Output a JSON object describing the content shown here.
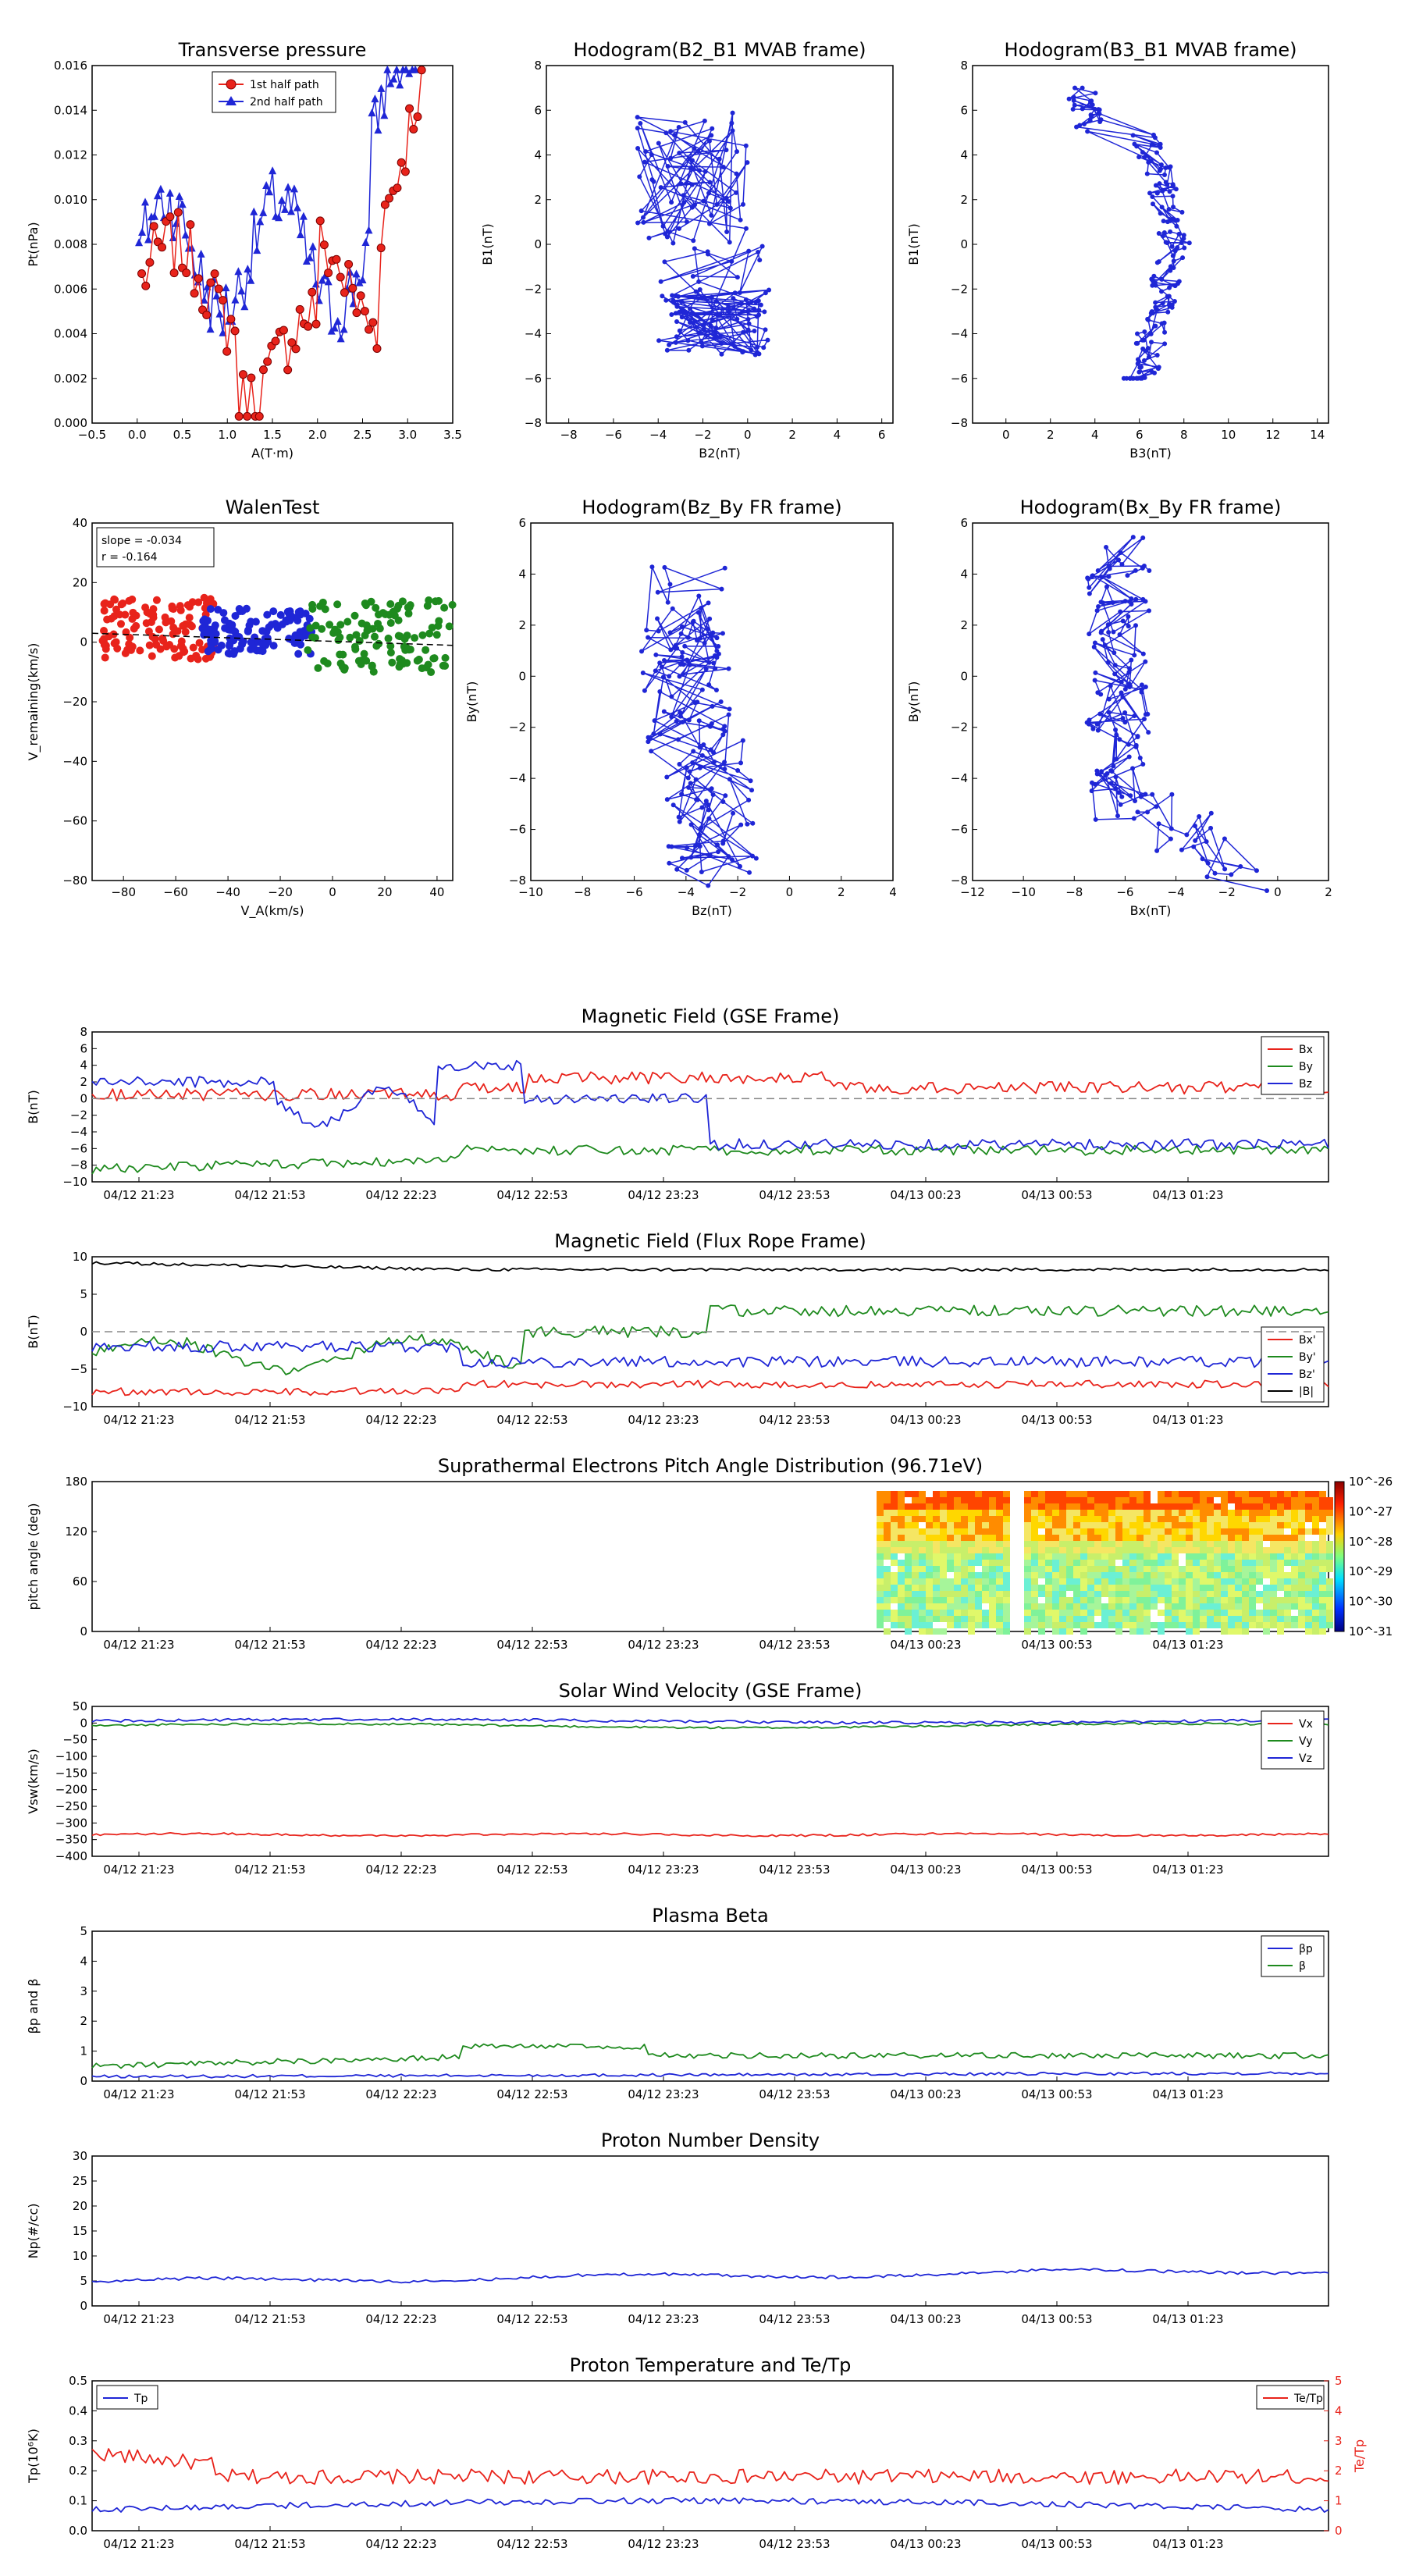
{
  "colors": {
    "red": "#e8231b",
    "green": "#1e8a1e",
    "blue": "#1f26d6",
    "black": "#000000",
    "dash": "#888888"
  },
  "time_ticks": [
    "04/12 21:23",
    "04/12 21:53",
    "04/12 22:23",
    "04/12 22:53",
    "04/12 23:23",
    "04/12 23:53",
    "04/13 00:23",
    "04/13 00:53",
    "04/13 01:23"
  ],
  "chart_data": [
    {
      "id": "pt",
      "type": "scatter",
      "title": "Transverse pressure",
      "xlabel": "A(T·m)",
      "ylabel": "Pt(nPa)",
      "xlim": [
        -0.5,
        3.5
      ],
      "ylim": [
        0,
        0.016
      ],
      "xticks": [
        "−0.5",
        "0.0",
        "0.5",
        "1.0",
        "1.5",
        "2.0",
        "2.5",
        "3.0",
        "3.5"
      ],
      "yticks": [
        "0.000",
        "0.002",
        "0.004",
        "0.006",
        "0.008",
        "0.010",
        "0.012",
        "0.014",
        "0.016"
      ],
      "legend": "upper-center",
      "series": [
        {
          "name": "1st half path",
          "marker": "circle"
        },
        {
          "name": "2nd half path",
          "marker": "triangle"
        }
      ]
    },
    {
      "id": "h1",
      "type": "line",
      "title": "Hodogram(B2_B1 MVAB frame)",
      "xlabel": "B2(nT)",
      "ylabel": "B1(nT)",
      "xlim": [
        -9,
        6.5
      ],
      "ylim": [
        -8,
        8
      ],
      "xticks": [
        "−8",
        "−6",
        "−4",
        "−2",
        "0",
        "2",
        "4",
        "6"
      ],
      "yticks": [
        "−8",
        "−6",
        "−4",
        "−2",
        "0",
        "2",
        "4",
        "6",
        "8"
      ]
    },
    {
      "id": "h2",
      "type": "line",
      "title": "Hodogram(B3_B1 MVAB frame)",
      "xlabel": "B3(nT)",
      "ylabel": "B1(nT)",
      "xlim": [
        -1.5,
        14.5
      ],
      "ylim": [
        -8,
        8
      ],
      "xticks": [
        "0",
        "2",
        "4",
        "6",
        "8",
        "10",
        "12",
        "14"
      ],
      "yticks": [
        "−8",
        "−6",
        "−4",
        "−2",
        "0",
        "2",
        "4",
        "6",
        "8"
      ]
    },
    {
      "id": "walen",
      "type": "scatter",
      "title": "WalenTest",
      "xlabel": "V_A(km/s)",
      "ylabel": "V_remaining(km/s)",
      "xlim": [
        -92,
        46
      ],
      "ylim": [
        -93,
        46
      ],
      "xticks": [
        "−80",
        "−60",
        "−40",
        "−20",
        "0",
        "20",
        "40"
      ],
      "yticks": [
        "−80",
        "−60",
        "−40",
        "−20",
        "0",
        "20",
        "40"
      ],
      "annotations": [
        "slope = -0.034",
        "r = -0.164"
      ]
    },
    {
      "id": "h3",
      "type": "line",
      "title": "Hodogram(Bz_By FR frame)",
      "xlabel": "Bz(nT)",
      "ylabel": "By(nT)",
      "xlim": [
        -10,
        4
      ],
      "ylim": [
        -8,
        6
      ],
      "xticks": [
        "−10",
        "−8",
        "−6",
        "−4",
        "−2",
        "0",
        "2",
        "4"
      ],
      "yticks": [
        "−8",
        "−6",
        "−4",
        "−2",
        "0",
        "2",
        "4",
        "6"
      ]
    },
    {
      "id": "h4",
      "type": "line",
      "title": "Hodogram(Bx_By FR frame)",
      "xlabel": "Bx(nT)",
      "ylabel": "By(nT)",
      "xlim": [
        -12,
        2
      ],
      "ylim": [
        -8,
        6
      ],
      "xticks": [
        "−12",
        "−10",
        "−8",
        "−6",
        "−4",
        "−2",
        "0",
        "2"
      ],
      "yticks": [
        "−8",
        "−6",
        "−4",
        "−2",
        "0",
        "2",
        "4",
        "6"
      ]
    },
    {
      "id": "ts1",
      "type": "line",
      "title": "Magnetic Field (GSE Frame)",
      "ylabel": "B(nT)",
      "ylim": [
        -10,
        8
      ],
      "yticks": [
        "−10",
        "−8",
        "−6",
        "−4",
        "−2",
        "0",
        "2",
        "4",
        "6",
        "8"
      ],
      "legend": "upper-right",
      "series": [
        {
          "name": "Bx",
          "base": 1.3
        },
        {
          "name": "By",
          "base": -6.5
        },
        {
          "name": "Bz",
          "base": -4.5
        }
      ]
    },
    {
      "id": "ts2",
      "type": "line",
      "title": "Magnetic Field (Flux Rope Frame)",
      "ylabel": "B(nT)",
      "ylim": [
        -10,
        10
      ],
      "yticks": [
        "−10",
        "−5",
        "0",
        "5",
        "10"
      ],
      "legend": "lower-right",
      "series": [
        {
          "name": "Bx'",
          "base": -7
        },
        {
          "name": "By'",
          "base": 2.5
        },
        {
          "name": "Bz'",
          "base": -3.5
        },
        {
          "name": "|B|",
          "base": 8.3
        }
      ]
    },
    {
      "id": "ts3",
      "type": "heatmap",
      "title": "Suprathermal Electrons Pitch Angle Distribution (96.71eV)",
      "ylabel": "pitch angle (deg)",
      "ylim": [
        0,
        180
      ],
      "yticks": [
        "0",
        "60",
        "120",
        "180"
      ],
      "colorbar_ticks": [
        "10^-26",
        "10^-27",
        "10^-28",
        "10^-29",
        "10^-30",
        "10^-31"
      ]
    },
    {
      "id": "ts4",
      "type": "line",
      "title": "Solar Wind Velocity (GSE Frame)",
      "ylabel": "Vsw(km/s)",
      "ylim": [
        -400,
        50
      ],
      "yticks": [
        "−400",
        "−350",
        "−300",
        "−250",
        "−200",
        "−150",
        "−100",
        "−50",
        "0",
        "50"
      ],
      "legend": "upper-right",
      "series": [
        {
          "name": "Vx",
          "base": -335
        },
        {
          "name": "Vy",
          "base": -5
        },
        {
          "name": "Vz",
          "base": 5
        }
      ]
    },
    {
      "id": "ts5",
      "type": "line",
      "title": "Plasma Beta",
      "ylabel": "βp and β",
      "ylim": [
        0,
        5
      ],
      "yticks": [
        "0",
        "1",
        "2",
        "3",
        "4",
        "5"
      ],
      "legend": "upper-right",
      "series": [
        {
          "name": "βp",
          "base": 0.25
        },
        {
          "name": "β",
          "base": 0.85
        }
      ]
    },
    {
      "id": "ts6",
      "type": "line",
      "title": "Proton Number Density",
      "ylabel": "Np(#/cc)",
      "ylim": [
        0,
        30
      ],
      "yticks": [
        "0",
        "5",
        "10",
        "15",
        "20",
        "25",
        "30"
      ],
      "series": [
        {
          "name": "Np",
          "base": 5.8
        }
      ]
    },
    {
      "id": "ts7",
      "type": "line",
      "title": "Proton Temperature and Te/Tp",
      "ylabel": "Tp(10⁶K)",
      "y2label": "Te/Tp",
      "ylim": [
        0,
        0.5
      ],
      "yticks": [
        "0.0",
        "0.1",
        "0.2",
        "0.3",
        "0.4",
        "0.5"
      ],
      "y2lim": [
        0,
        5
      ],
      "y2ticks": [
        "0",
        "1",
        "2",
        "3",
        "4",
        "5"
      ],
      "series": [
        {
          "name": "Tp",
          "base": 0.09
        },
        {
          "name": "Te/Tp",
          "base": 2.0
        }
      ]
    }
  ]
}
